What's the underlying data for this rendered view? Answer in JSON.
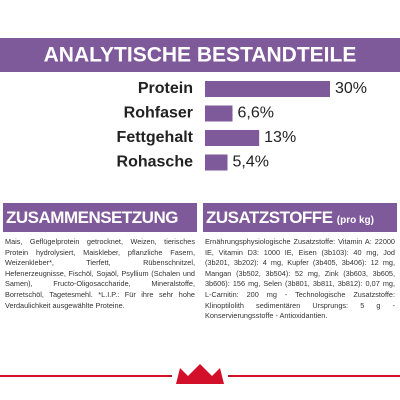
{
  "chart_data": {
    "type": "bar",
    "title": "ANALYTISCHE BESTANDTEILE",
    "categories": [
      "Protein",
      "Rohfaser",
      "Fettgehalt",
      "Rohasche"
    ],
    "values": [
      30,
      6.6,
      13,
      5.4
    ],
    "value_labels": [
      "30%",
      "6,6%",
      "13%",
      "5,4%"
    ],
    "color": "#7f5a9b"
  },
  "composition": {
    "title": "ZUSAMMENSETZUNG",
    "text": "Mais, Geflügelprotein getrocknet, Weizen, tierisches Protein hydrolysiert, Maiskleber, pflanzliche Fasern, Weizenkleber*, Tierfett, Rübenschnitzel, Hefenerzeugnisse, Fischöl, Sojaöl, Psyllium (Schalen und Samen), Fructo-Oligosaccharide, Mineralstoffe, Borretschöl, Tagetesmehl. *L.I.P.: Für ihre sehr hohe Verdaulichkeit ausgewählte Proteine."
  },
  "additives": {
    "title": "ZUSATZSTOFFE",
    "subtitle": "(pro kg)",
    "text": "Ernährungsphysiologische Zusatzstoffe: Vitamin A: 22000 IE, Vitamin D3: 1000 IE, Eisen (3b103): 40 mg, Jod (3b201, 3b202): 4 mg, Kupfer (3b405, 3b406): 12 mg, Mangan (3b502, 3b504): 52 mg, Zink (3b603, 3b605, 3b606): 156 mg, Selen (3b801, 3b811, 3b812): 0,07 mg, L-Carnitin: 200 mg - Technologische Zusatzstoffe: Klinoptilolith sedimentären Ursprungs: 5 g - Konservierungsstoffe - Antioxidantien."
  }
}
